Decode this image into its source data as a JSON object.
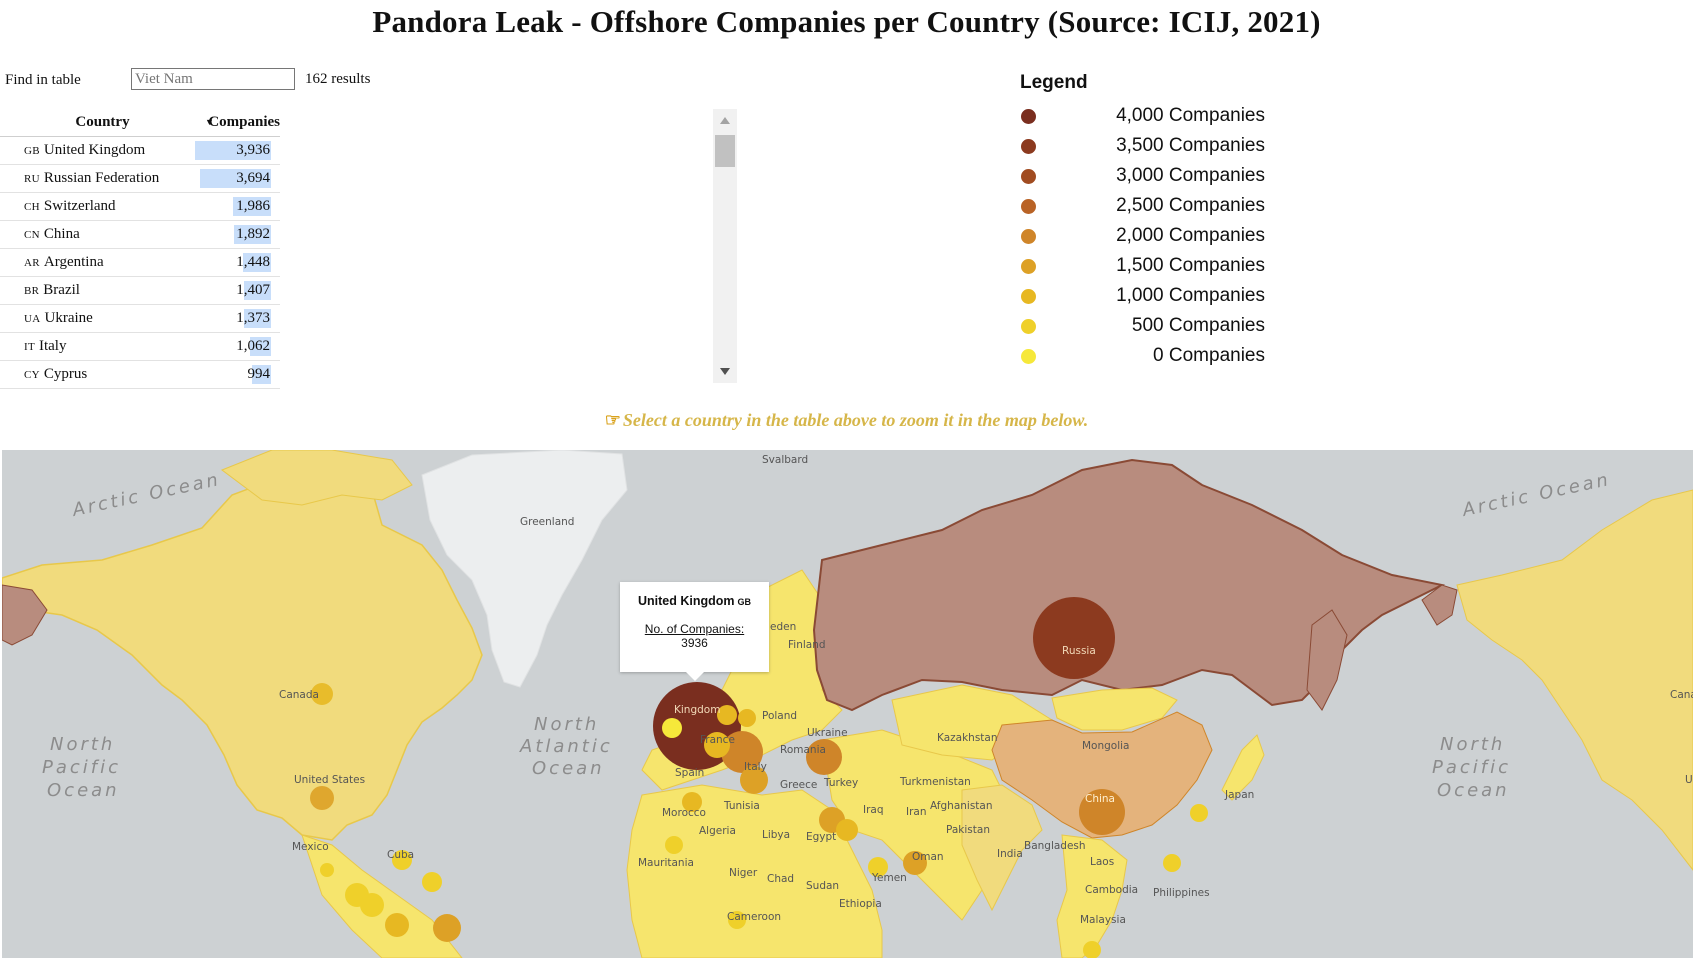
{
  "page": {
    "title": "Pandora Leak - Offshore Companies per Country (Source: ICIJ, 2021)"
  },
  "search": {
    "label": "Find in table",
    "value": "",
    "placeholder": "Viet Nam",
    "results": "162 results"
  },
  "table": {
    "headers": {
      "country": "Country",
      "companies": "Companies"
    },
    "max_value": 3936,
    "rows": [
      {
        "code": "GB",
        "country": "United Kingdom",
        "value": 3936,
        "display": "3,936"
      },
      {
        "code": "RU",
        "country": "Russian Federation",
        "value": 3694,
        "display": "3,694"
      },
      {
        "code": "CH",
        "country": "Switzerland",
        "value": 1986,
        "display": "1,986"
      },
      {
        "code": "CN",
        "country": "China",
        "value": 1892,
        "display": "1,892"
      },
      {
        "code": "AR",
        "country": "Argentina",
        "value": 1448,
        "display": "1,448"
      },
      {
        "code": "BR",
        "country": "Brazil",
        "value": 1407,
        "display": "1,407"
      },
      {
        "code": "UA",
        "country": "Ukraine",
        "value": 1373,
        "display": "1,373"
      },
      {
        "code": "IT",
        "country": "Italy",
        "value": 1062,
        "display": "1,062"
      },
      {
        "code": "CY",
        "country": "Cyprus",
        "value": 994,
        "display": "994"
      }
    ]
  },
  "legend": {
    "title": "Legend",
    "items": [
      {
        "label": "4,000 Companies",
        "color": "#7a2e1f"
      },
      {
        "label": "3,500 Companies",
        "color": "#8c3a1f"
      },
      {
        "label": "3,000 Companies",
        "color": "#a14c21"
      },
      {
        "label": "2,500 Companies",
        "color": "#b96326"
      },
      {
        "label": "2,000 Companies",
        "color": "#cf8529"
      },
      {
        "label": "1,500 Companies",
        "color": "#dda126"
      },
      {
        "label": "1,000 Companies",
        "color": "#e7b822"
      },
      {
        "label": "500 Companies",
        "color": "#efd02a"
      },
      {
        "label": "0 Companies",
        "color": "#f6e83a"
      }
    ]
  },
  "hint": {
    "icon": "pointing-hand-icon",
    "text": "Select a country in the table above to zoom it in the map below."
  },
  "map": {
    "oceans": {
      "arctic_left": "Arctic Ocean",
      "arctic_right": "Arctic Ocean",
      "pacific_left": [
        "North",
        "Pacific",
        "Ocean"
      ],
      "atlantic": [
        "North",
        "Atlantic",
        "Ocean"
      ],
      "pacific_right": [
        "North",
        "Pacific",
        "Ocean"
      ]
    },
    "labels": {
      "svalbard": "Svalbard",
      "greenland": "Greenland",
      "canada": "Canada",
      "canada_right": "Cana",
      "united_states": "United States",
      "united_states_right": "U",
      "mexico": "Mexico",
      "cuba": "Cuba",
      "sweden": "eden",
      "finland": "Finland",
      "kingdom": "Kingdom",
      "poland": "Poland",
      "france": "France",
      "ukraine": "Ukraine",
      "romania": "Romania",
      "italy": "Italy",
      "spain": "Spain",
      "greece": "Greece",
      "turkey": "Turkey",
      "tunisia": "Tunisia",
      "morocco": "Morocco",
      "algeria": "Algeria",
      "libya": "Libya",
      "egypt": "Egypt",
      "mauritania": "Mauritania",
      "niger": "Niger",
      "chad": "Chad",
      "sudan": "Sudan",
      "ethiopia": "Ethiopia",
      "cameroon": "Cameroon",
      "russia": "Russia",
      "kazakhstan": "Kazakhstan",
      "mongolia": "Mongolia",
      "china": "China",
      "japan": "Japan",
      "turkmenistan": "Turkmenistan",
      "iraq": "Iraq",
      "iran": "Iran",
      "afghanistan": "Afghanistan",
      "pakistan": "Pakistan",
      "oman": "Oman",
      "yemen": "Yemen",
      "india": "India",
      "bangladesh": "Bangladesh",
      "laos": "Laos",
      "cambodia": "Cambodia",
      "philippines": "Philippines",
      "malaysia": "Malaysia"
    },
    "tooltip": {
      "country": "United Kingdom",
      "code": "GB",
      "label": "No. of Companies:",
      "value": "3936"
    },
    "colors": {
      "ocean": "#cdd1d3",
      "greenland": "#eceeef",
      "low": "#f6e56d",
      "russia": "#b88c7e",
      "china": "#e4b37c"
    }
  }
}
